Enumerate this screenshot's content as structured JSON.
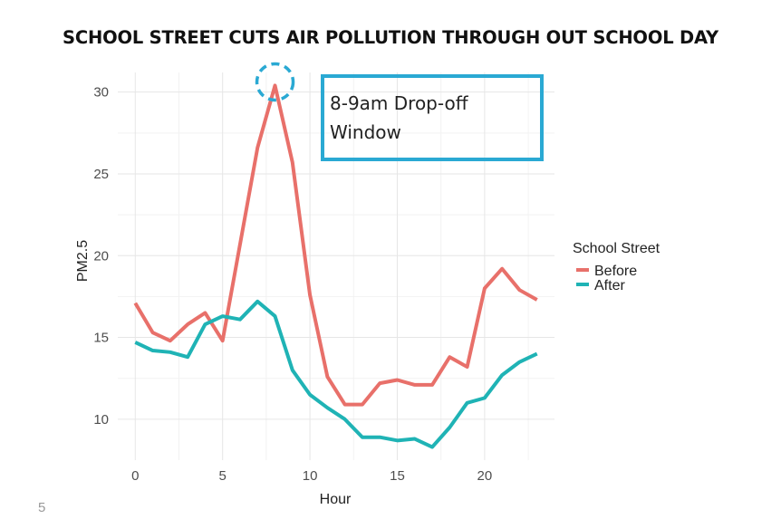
{
  "headline": "SCHOOL STREET CUTS AIR POLLUTION THROUGH OUT SCHOOL DAY",
  "page_number": "5",
  "annotation": {
    "line1": "8-9am Drop-off",
    "line2": "Window",
    "box_color": "#2aa9d3",
    "highlight_hour": 8
  },
  "chart_data": {
    "type": "line",
    "title": "",
    "xlabel": "Hour",
    "ylabel": "PM2.5",
    "xlim": [
      -1,
      24
    ],
    "ylim": [
      7.5,
      31.2
    ],
    "xticks": [
      0,
      5,
      10,
      15,
      20
    ],
    "yticks": [
      10,
      15,
      20,
      25,
      30
    ],
    "grid": true,
    "legend": {
      "title": "School Street",
      "position": "right"
    },
    "series": [
      {
        "name": "Before",
        "color": "#e8706a",
        "x": [
          0,
          1,
          2,
          3,
          4,
          5,
          6,
          7,
          8,
          9,
          10,
          11,
          12,
          13,
          14,
          15,
          16,
          17,
          18,
          19,
          20,
          21,
          22,
          23
        ],
        "values": [
          17.1,
          15.3,
          14.8,
          15.8,
          16.5,
          14.8,
          20.7,
          26.6,
          30.4,
          25.7,
          17.6,
          12.6,
          10.9,
          10.9,
          12.2,
          12.4,
          12.1,
          12.1,
          13.8,
          13.2,
          18.0,
          19.2,
          17.9,
          17.3
        ]
      },
      {
        "name": "After",
        "color": "#1fb3b5",
        "x": [
          0,
          1,
          2,
          3,
          4,
          5,
          6,
          7,
          8,
          9,
          10,
          11,
          12,
          13,
          14,
          15,
          16,
          17,
          18,
          19,
          20,
          21,
          22,
          23
        ],
        "values": [
          14.7,
          14.2,
          14.1,
          13.8,
          15.8,
          16.3,
          16.1,
          17.2,
          16.3,
          13.0,
          11.5,
          10.7,
          10.0,
          8.9,
          8.9,
          8.7,
          8.8,
          8.3,
          9.5,
          11.0,
          11.3,
          12.7,
          13.5,
          14.0
        ]
      }
    ]
  }
}
